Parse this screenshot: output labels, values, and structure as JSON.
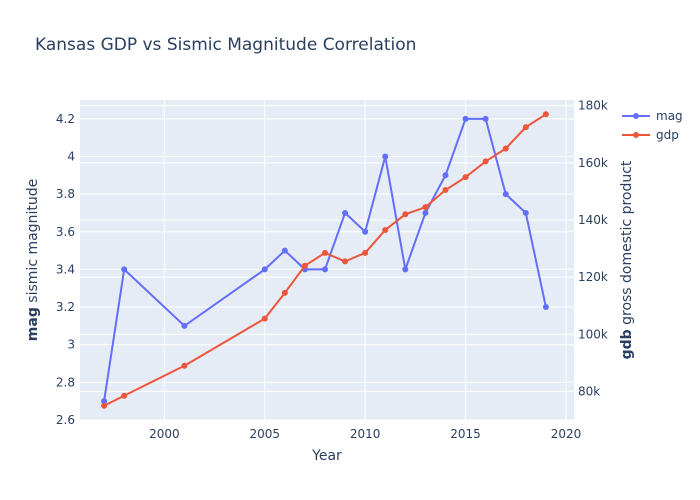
{
  "chart_data": {
    "type": "line",
    "title": "Kansas GDP vs Sismic Magnitude Correlation",
    "xlabel": "Year",
    "y_left": {
      "bold": "mag",
      "rest": " sismic magnitude",
      "range": [
        2.6,
        4.3
      ],
      "ticks": [
        2.6,
        2.8,
        3.0,
        3.2,
        3.4,
        3.6,
        3.8,
        4.0,
        4.2
      ],
      "tick_labels": [
        "2.6",
        "2.8",
        "3",
        "3.2",
        "3.4",
        "3.6",
        "3.8",
        "4",
        "4.2"
      ]
    },
    "y_right": {
      "bold": "gdb",
      "rest": " gross domestic product",
      "range": [
        70000,
        182000
      ],
      "ticks": [
        80000,
        100000,
        120000,
        140000,
        160000,
        180000
      ],
      "tick_labels": [
        "80k",
        "100k",
        "120k",
        "140k",
        "160k",
        "180k"
      ]
    },
    "x_axis": {
      "range": [
        1995.8,
        2020.4
      ],
      "ticks": [
        2000,
        2005,
        2010,
        2015,
        2020
      ],
      "tick_labels": [
        "2000",
        "2005",
        "2010",
        "2015",
        "2020"
      ]
    },
    "series": [
      {
        "name": "mag",
        "axis": "left",
        "color": "#636efa",
        "x": [
          1997,
          1998,
          2001,
          2005,
          2006,
          2007,
          2008,
          2009,
          2010,
          2011,
          2012,
          2013,
          2014,
          2015,
          2016,
          2017,
          2018,
          2019
        ],
        "values": [
          2.7,
          3.4,
          3.1,
          3.4,
          3.5,
          3.4,
          3.4,
          3.7,
          3.6,
          4.0,
          3.4,
          3.7,
          3.9,
          4.2,
          4.2,
          3.8,
          3.7,
          3.2
        ]
      },
      {
        "name": "gdp",
        "axis": "right",
        "color": "#ef553b",
        "x": [
          1997,
          1998,
          2001,
          2005,
          2006,
          2007,
          2008,
          2009,
          2010,
          2011,
          2012,
          2013,
          2014,
          2015,
          2016,
          2017,
          2018,
          2019
        ],
        "values": [
          75000,
          78500,
          89000,
          105500,
          114500,
          124000,
          128500,
          125500,
          128500,
          136500,
          142000,
          144500,
          150500,
          155000,
          160500,
          165000,
          172500,
          177000
        ]
      }
    ],
    "grid": true,
    "legend": "top-right"
  }
}
